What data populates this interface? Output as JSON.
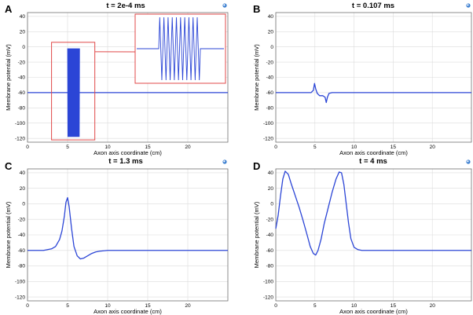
{
  "chart_data": [
    {
      "panel_label": "A",
      "type": "line",
      "title": "t = 2e-4 ms",
      "xlabel": "Axon axis coordinate (cm)",
      "ylabel": "Membrane potential (mV)",
      "xlim": [
        0,
        25
      ],
      "ylim": [
        -125,
        45
      ],
      "xticks": [
        0,
        5,
        10,
        15,
        20
      ],
      "yticks": [
        40,
        20,
        0,
        -20,
        -40,
        -60,
        -80,
        -100,
        -120
      ],
      "baseline": -60,
      "stim_region": [
        5.0,
        6.5
      ],
      "stim_top": -2,
      "stim_bottom": -118,
      "stim_cycles": 10,
      "inset_box_data": {
        "x0": 3.0,
        "x1": 8.4,
        "y0": 6,
        "y1": -122
      },
      "x": [
        0,
        5,
        5,
        6.5,
        6.5,
        25
      ],
      "y": [
        -60,
        -60,
        -60,
        -60,
        -60,
        -60
      ]
    },
    {
      "panel_label": "B",
      "type": "line",
      "title": "t = 0.107 ms",
      "xlabel": "Axon axis coordinate (cm)",
      "ylabel": "Membrane potential (mV)",
      "xlim": [
        0,
        25
      ],
      "ylim": [
        -125,
        45
      ],
      "xticks": [
        0,
        5,
        10,
        15,
        20
      ],
      "yticks": [
        40,
        20,
        0,
        -20,
        -40,
        -60,
        -80,
        -100,
        -120
      ],
      "x": [
        0,
        4.5,
        4.8,
        4.95,
        5.1,
        5.3,
        5.6,
        6.0,
        6.3,
        6.45,
        6.6,
        6.8,
        7.2,
        8,
        25
      ],
      "y": [
        -60,
        -60,
        -57,
        -48,
        -55,
        -61,
        -64,
        -64,
        -66,
        -73,
        -66,
        -61,
        -60,
        -60,
        -60
      ]
    },
    {
      "panel_label": "C",
      "type": "line",
      "title": "t = 1.3 ms",
      "xlabel": "Axon axis coordinate (cm)",
      "ylabel": "Membrane potential (mV)",
      "xlim": [
        0,
        25
      ],
      "ylim": [
        -125,
        45
      ],
      "xticks": [
        0,
        5,
        10,
        15,
        20
      ],
      "yticks": [
        40,
        20,
        0,
        -20,
        -40,
        -60,
        -80,
        -100,
        -120
      ],
      "x": [
        0,
        2,
        3,
        3.5,
        4,
        4.3,
        4.6,
        4.8,
        5,
        5.2,
        5.5,
        5.8,
        6.2,
        6.6,
        7,
        7.5,
        8,
        8.5,
        9,
        10,
        25
      ],
      "y": [
        -60,
        -60,
        -58,
        -55,
        -46,
        -35,
        -16,
        2,
        8,
        -4,
        -32,
        -55,
        -67,
        -71,
        -70,
        -67,
        -64,
        -62,
        -61,
        -60,
        -60
      ]
    },
    {
      "panel_label": "D",
      "type": "line",
      "title": "t = 4 ms",
      "xlabel": "Axon axis coordinate (cm)",
      "ylabel": "Membrane potential (mV)",
      "xlim": [
        0,
        25
      ],
      "ylim": [
        -125,
        45
      ],
      "xticks": [
        0,
        5,
        10,
        15,
        20
      ],
      "yticks": [
        40,
        20,
        0,
        -20,
        -40,
        -60,
        -80,
        -100,
        -120
      ],
      "x": [
        0,
        0.3,
        0.6,
        0.9,
        1.2,
        1.6,
        2.0,
        2.5,
        3,
        3.5,
        4,
        4.4,
        4.8,
        5.1,
        5.4,
        5.8,
        6.2,
        6.7,
        7.2,
        7.7,
        8.1,
        8.4,
        8.7,
        9.0,
        9.3,
        9.6,
        10,
        10.5,
        11,
        25
      ],
      "y": [
        -32,
        -15,
        10,
        32,
        42,
        38,
        25,
        10,
        -5,
        -22,
        -40,
        -55,
        -64,
        -66,
        -60,
        -45,
        -25,
        -5,
        15,
        32,
        41,
        40,
        25,
        0,
        -25,
        -45,
        -56,
        -59,
        -60,
        -60
      ]
    }
  ],
  "colors": {
    "line": "#2b45d6",
    "inset": "#e04848",
    "grid": "#dcdcdc",
    "frame": "#707070"
  },
  "icons": {
    "corner": "settings-logo-icon"
  }
}
